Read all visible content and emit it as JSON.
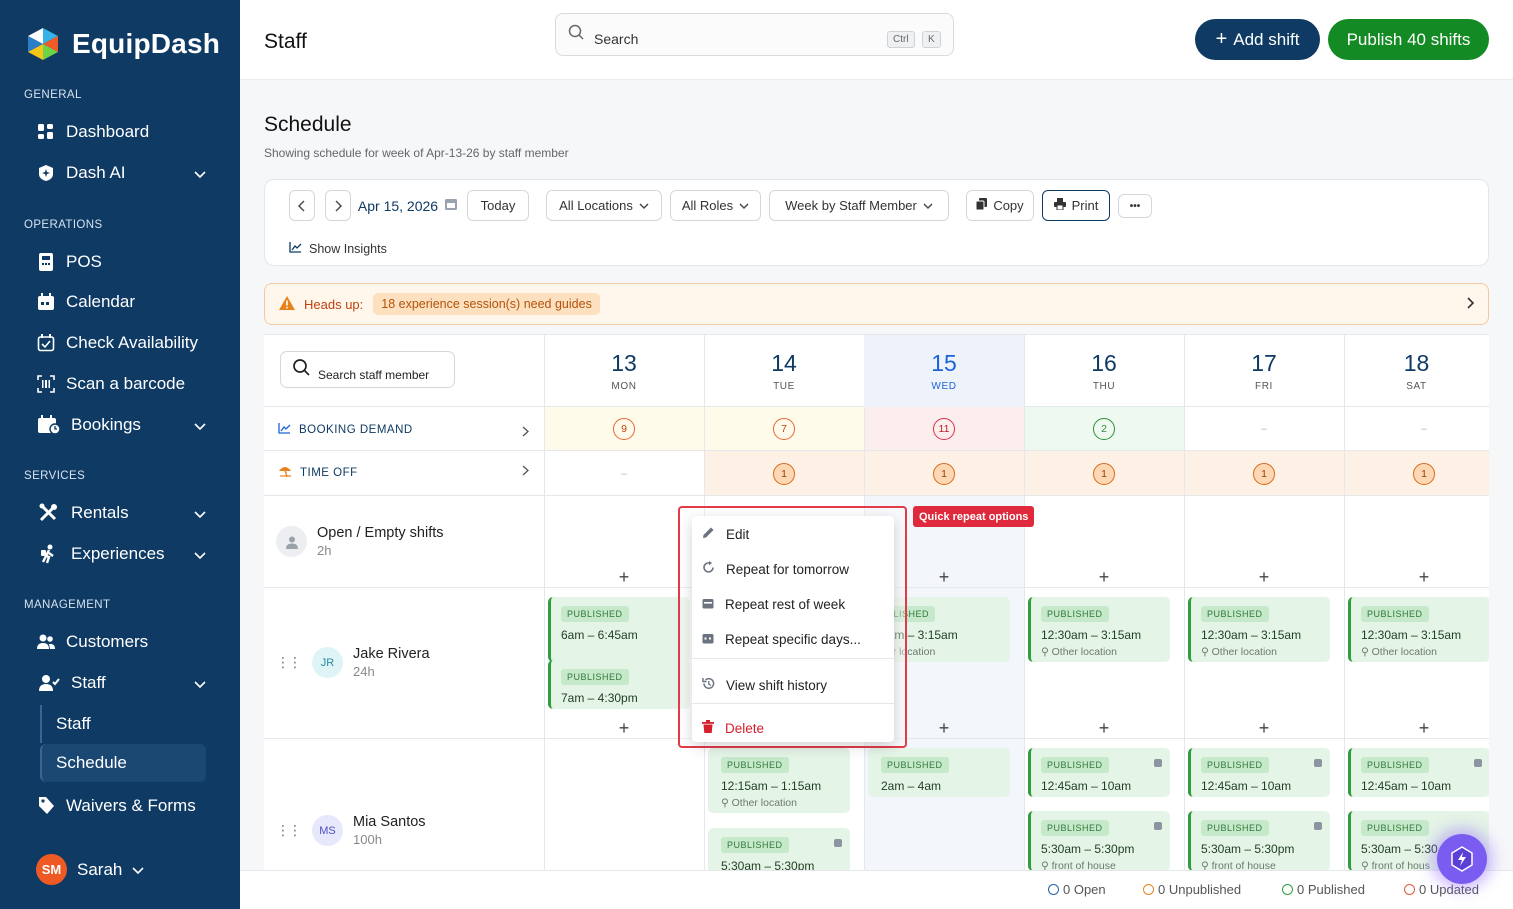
{
  "brand": {
    "name": "EquipDash"
  },
  "sidebar": {
    "sections": {
      "general": "GENERAL",
      "operations": "OPERATIONS",
      "services": "SERVICES",
      "management": "MANAGEMENT"
    },
    "items": {
      "dashboard": "Dashboard",
      "dash_ai": "Dash AI",
      "pos": "POS",
      "calendar": "Calendar",
      "check_availability": "Check Availability",
      "scan_barcode": "Scan a barcode",
      "bookings": "Bookings",
      "rentals": "Rentals",
      "experiences": "Experiences",
      "customers": "Customers",
      "staff": "Staff",
      "staff_sub": "Staff",
      "schedule_sub": "Schedule",
      "waivers": "Waivers & Forms"
    },
    "user": {
      "initials": "SM",
      "name": "Sarah"
    }
  },
  "header": {
    "title": "Staff",
    "search_placeholder": "Search",
    "kbd_ctrl": "Ctrl",
    "kbd_k": "K",
    "add_shift": "Add shift",
    "publish": "Publish 40 shifts"
  },
  "schedule": {
    "title": "Schedule",
    "subtitle": "Showing schedule for week of Apr-13-26 by staff member"
  },
  "toolbar": {
    "date": "Apr 15, 2026",
    "today": "Today",
    "locations": "All Locations",
    "roles": "All Roles",
    "view": "Week by Staff Member",
    "copy": "Copy",
    "print": "Print",
    "more": "•••",
    "insights": "Show Insights"
  },
  "alert": {
    "label": "Heads up:",
    "message": "18 experience session(s) need guides"
  },
  "grid": {
    "search_placeholder": "Search staff member",
    "days": [
      {
        "num": "13",
        "name": "MON"
      },
      {
        "num": "14",
        "name": "TUE"
      },
      {
        "num": "15",
        "name": "WED"
      },
      {
        "num": "16",
        "name": "THU"
      },
      {
        "num": "17",
        "name": "FRI"
      },
      {
        "num": "18",
        "name": "SAT"
      }
    ],
    "booking_demand": {
      "label": "BOOKING DEMAND",
      "values": [
        "9",
        "7",
        "11",
        "2",
        "–",
        "–"
      ]
    },
    "time_off": {
      "label": "TIME OFF",
      "values": [
        "–",
        "1",
        "1",
        "1",
        "1",
        "1"
      ]
    },
    "open": {
      "name": "Open / Empty shifts",
      "hours": "2h"
    },
    "staff": [
      {
        "initials": "JR",
        "name": "Jake Rivera",
        "hours": "24h"
      },
      {
        "initials": "MS",
        "name": "Mia Santos",
        "hours": "100h"
      }
    ],
    "plus": "+",
    "badge": "PUBLISHED",
    "shifts": {
      "jake_mon_1": {
        "time": "6am – 6:45am"
      },
      "jake_mon_2": {
        "time": "7am – 4:30pm"
      },
      "jake_wed": {
        "badge": "BLISHED",
        "time": "0am – 3:15am",
        "loc": "her location"
      },
      "jake_thu": {
        "time": "12:30am – 3:15am",
        "loc": "Other location"
      },
      "jake_fri": {
        "time": "12:30am – 3:15am",
        "loc": "Other location"
      },
      "jake_sat": {
        "time": "12:30am – 3:15am",
        "loc": "Other location"
      },
      "mia_tue_1": {
        "time": "12:15am – 1:15am",
        "loc": "Other location"
      },
      "mia_tue_2": {
        "time": "5:30am – 5:30pm"
      },
      "mia_wed": {
        "time": "2am – 4am"
      },
      "mia_thu_1": {
        "time": "12:45am – 10am"
      },
      "mia_thu_2": {
        "time": "5:30am – 5:30pm",
        "loc": "front of house"
      },
      "mia_fri_1": {
        "time": "12:45am – 10am"
      },
      "mia_fri_2": {
        "time": "5:30am – 5:30pm",
        "loc": "front of house"
      },
      "mia_sat_1": {
        "time": "12:45am – 10am"
      },
      "mia_sat_2": {
        "time": "5:30am – 5:30",
        "loc": "front of hous"
      }
    }
  },
  "context_menu": {
    "edit": "Edit",
    "repeat_tomorrow": "Repeat for tomorrow",
    "repeat_week": "Repeat rest of week",
    "repeat_specific": "Repeat specific days...",
    "history": "View shift history",
    "delete": "Delete",
    "tag": "Quick repeat options"
  },
  "footer": {
    "open": "0 Open",
    "unpublished": "0 Unpublished",
    "published": "0 Published",
    "updated": "0 Updated"
  },
  "colors": {
    "sidebar": "#0e3a64",
    "accent_green": "#148a24",
    "menu_outline": "#e23b4a"
  }
}
